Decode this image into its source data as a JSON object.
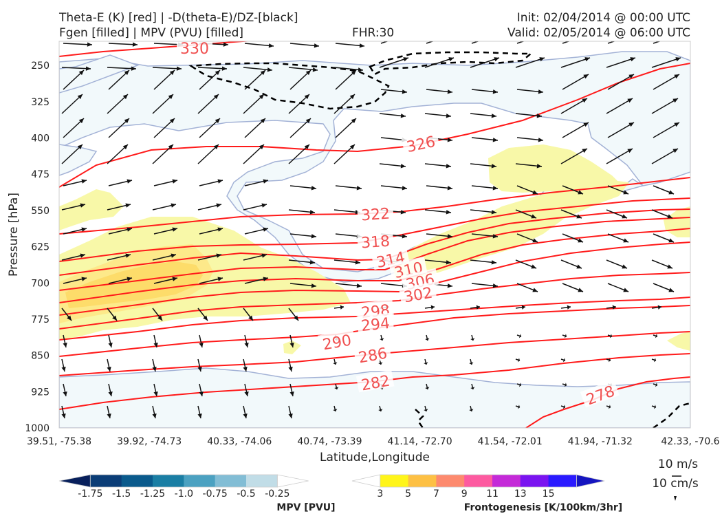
{
  "header": {
    "title_left_1": "Theta-E (K) [red] | -D(theta-E)/DZ-[black]",
    "title_left_2": "Fgen [filled] | MPV (PVU) [filled]",
    "fhr": "FHR:30",
    "init": "Init: 02/04/2014 @ 00:00 UTC",
    "valid": "Valid: 02/05/2014 @ 06:00 UTC"
  },
  "chart_data": {
    "type": "cross-section",
    "xlabel": "Latitude,Longitude",
    "ylabel": "Pressure [hPa]",
    "x_ticks": [
      "39.51, -75.38",
      "39.92, -74.73",
      "40.33, -74.06",
      "40.74, -73.39",
      "41.14, -72.70",
      "41.54, -72.01",
      "41.94, -71.32",
      "42.33, -70.6"
    ],
    "y_ticks": [
      250,
      325,
      400,
      475,
      550,
      625,
      700,
      775,
      850,
      925,
      1000
    ],
    "ylim": [
      200,
      1000
    ],
    "y_inverted": true,
    "theta_e_contours": [
      {
        "value": 330,
        "label": "330"
      },
      {
        "value": 326,
        "label": "326"
      },
      {
        "value": 322,
        "label": "322"
      },
      {
        "value": 318,
        "label": "318"
      },
      {
        "value": 314,
        "label": "314"
      },
      {
        "value": 310,
        "label": "310"
      },
      {
        "value": 306,
        "label": "306"
      },
      {
        "value": 302,
        "label": "302"
      },
      {
        "value": 298,
        "label": "298"
      },
      {
        "value": 294,
        "label": "294"
      },
      {
        "value": 290,
        "label": "290"
      },
      {
        "value": 286,
        "label": "286"
      },
      {
        "value": 282,
        "label": "282"
      },
      {
        "value": 278,
        "label": "278"
      }
    ],
    "colors": {
      "theta_e": "#ff1a1a",
      "theta_e_label": "#f05050",
      "mpv_fill": "#f2f9fb",
      "mpv_edge": "#a3b2d6",
      "fgen_light": "#f8f8a8",
      "fgen_mid": "#fde98a",
      "fgen_dark": "#fddc6a",
      "wind": "#111111",
      "stability": "#000000"
    },
    "wind_reference": {
      "speed_label": "10 m/s",
      "vertical_label": "10 cm/s"
    },
    "colorbars": [
      {
        "name": "MPV [PVU]",
        "ticks": [
          "-1.75",
          "-1.5",
          "-1.25",
          "-1.0",
          "-0.75",
          "-0.5",
          "-0.25"
        ],
        "colors": [
          "#08205c",
          "#0b3d77",
          "#0a5a8c",
          "#1a7ea4",
          "#4ba1c1",
          "#82bdd5",
          "#c1dde7",
          "#ffffff"
        ]
      },
      {
        "name": "Frontogenesis [K/100km/3hr]",
        "ticks": [
          "3",
          "5",
          "7",
          "9",
          "11",
          "13",
          "15"
        ],
        "colors": [
          "#ffffff",
          "#fff51a",
          "#fdc044",
          "#fd8a6e",
          "#fd5aa0",
          "#c42ad8",
          "#7a14f0",
          "#2a1aff",
          "#1515c0"
        ]
      }
    ]
  }
}
